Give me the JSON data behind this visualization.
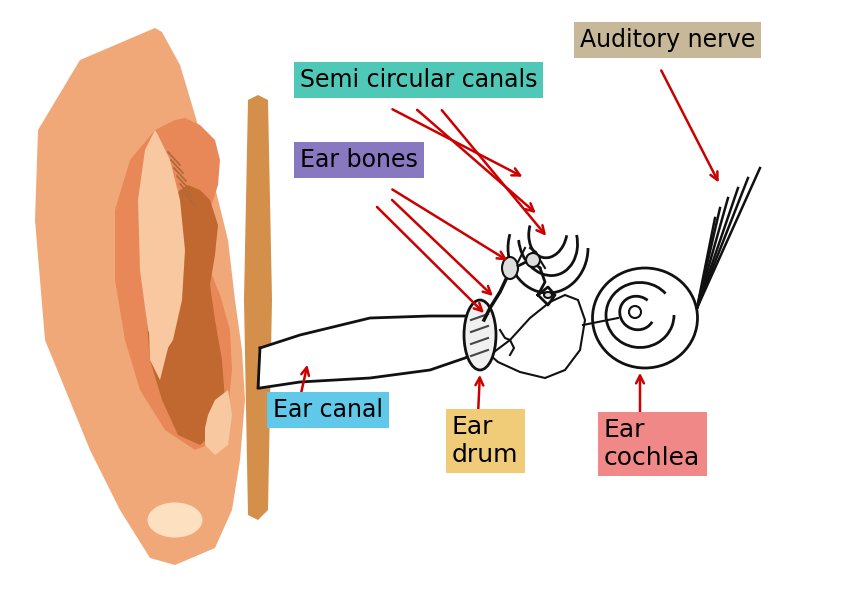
{
  "bg_color": "#ffffff",
  "labels": {
    "auditory_nerve": "Auditory nerve",
    "semi_circular": "Semi circular canals",
    "ear_bones": "Ear bones",
    "ear_canal": "Ear canal",
    "ear_drum": "Ear\ndrum",
    "ear_cochlea": "Ear\ncochlea"
  },
  "label_bg_colors": {
    "auditory_nerve": "#c8b89a",
    "semi_circular": "#50c8b8",
    "ear_bones": "#8878c0",
    "ear_canal": "#60c8e8",
    "ear_drum": "#f0cc78",
    "ear_cochlea": "#f08888"
  },
  "ear_colors": {
    "outer": "#f0a878",
    "mid": "#e88858",
    "dark": "#c06830",
    "light": "#f8c8a0",
    "highlight": "#fde0c0",
    "flap": "#d4904a"
  },
  "arrow_color": "#cc0000",
  "line_color": "#111111",
  "figsize": [
    8.42,
    5.96
  ],
  "dpi": 100
}
